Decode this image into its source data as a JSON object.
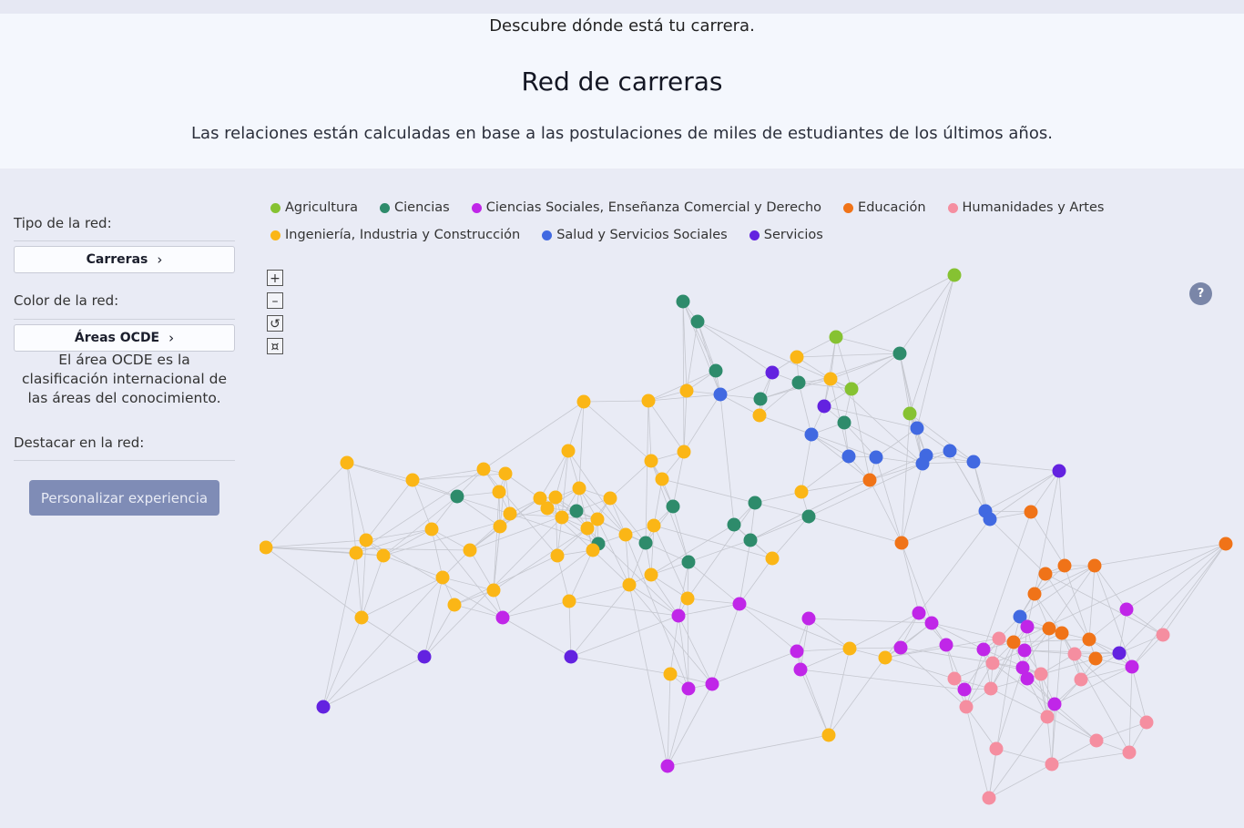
{
  "header": {
    "tagline": "Descubre dónde está tu carrera.",
    "title": "Red de carreras",
    "subtitle": "Las relaciones están calculadas en base a las postulaciones de miles de estudiantes de los últimos años."
  },
  "sidebar": {
    "network_type_label": "Tipo de la red:",
    "network_type_value": "Carreras",
    "color_label": "Color de la red:",
    "color_value": "Áreas OCDE",
    "color_note": "El área OCDE es la clasificación internacional de las áreas del conocimiento.",
    "highlight_label": "Destacar en la red:",
    "cta_label": "Personalizar experiencia"
  },
  "legend": [
    {
      "label": "Agricultura",
      "color": "#86c232",
      "key": "ag"
    },
    {
      "label": "Ciencias",
      "color": "#2e8b6b",
      "key": "ci"
    },
    {
      "label": "Ciencias Sociales, Enseñanza Comercial y Derecho",
      "color": "#c026e8",
      "key": "cs"
    },
    {
      "label": "Educación",
      "color": "#f07318",
      "key": "ed"
    },
    {
      "label": "Humanidades y Artes",
      "color": "#f58ea0",
      "key": "hu"
    },
    {
      "label": "Ingeniería, Industria y Construcción",
      "color": "#fbb616",
      "key": "in"
    },
    {
      "label": "Salud y Servicios Sociales",
      "color": "#4169e1",
      "key": "sa"
    },
    {
      "label": "Servicios",
      "color": "#6322e0",
      "key": "se"
    }
  ],
  "controls": {
    "zoom_in": "+",
    "zoom_out": "–",
    "reset": "↺",
    "fit": "¤",
    "help": "?"
  }
}
